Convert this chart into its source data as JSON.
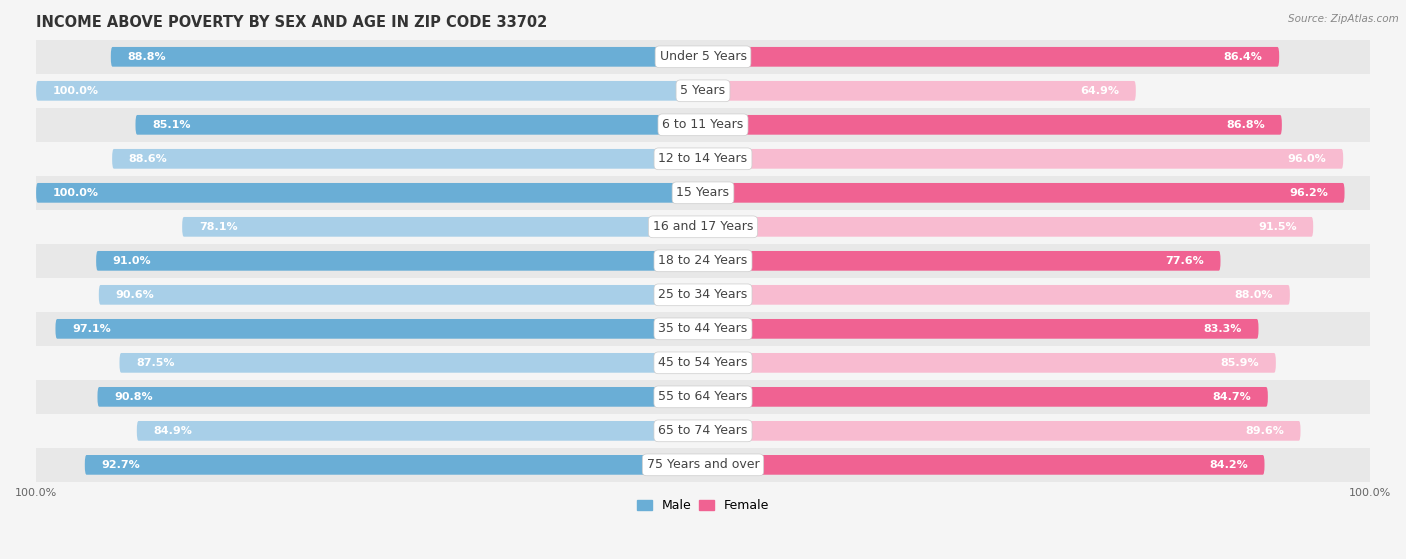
{
  "title": "INCOME ABOVE POVERTY BY SEX AND AGE IN ZIP CODE 33702",
  "source": "Source: ZipAtlas.com",
  "categories": [
    "Under 5 Years",
    "5 Years",
    "6 to 11 Years",
    "12 to 14 Years",
    "15 Years",
    "16 and 17 Years",
    "18 to 24 Years",
    "25 to 34 Years",
    "35 to 44 Years",
    "45 to 54 Years",
    "55 to 64 Years",
    "65 to 74 Years",
    "75 Years and over"
  ],
  "male_values": [
    88.8,
    100.0,
    85.1,
    88.6,
    100.0,
    78.1,
    91.0,
    90.6,
    97.1,
    87.5,
    90.8,
    84.9,
    92.7
  ],
  "female_values": [
    86.4,
    64.9,
    86.8,
    96.0,
    96.2,
    91.5,
    77.6,
    88.0,
    83.3,
    85.9,
    84.7,
    89.6,
    84.2
  ],
  "male_color_dark": "#6aaed6",
  "male_color_light": "#a8cfe8",
  "female_color_dark": "#f06292",
  "female_color_light": "#f8bbd0",
  "bar_height": 0.58,
  "background_color": "#f5f5f5",
  "row_color_odd": "#e8e8e8",
  "row_color_even": "#f5f5f5",
  "xlim": 100.0,
  "title_fontsize": 10.5,
  "cat_fontsize": 9,
  "value_fontsize": 8,
  "legend_fontsize": 9
}
